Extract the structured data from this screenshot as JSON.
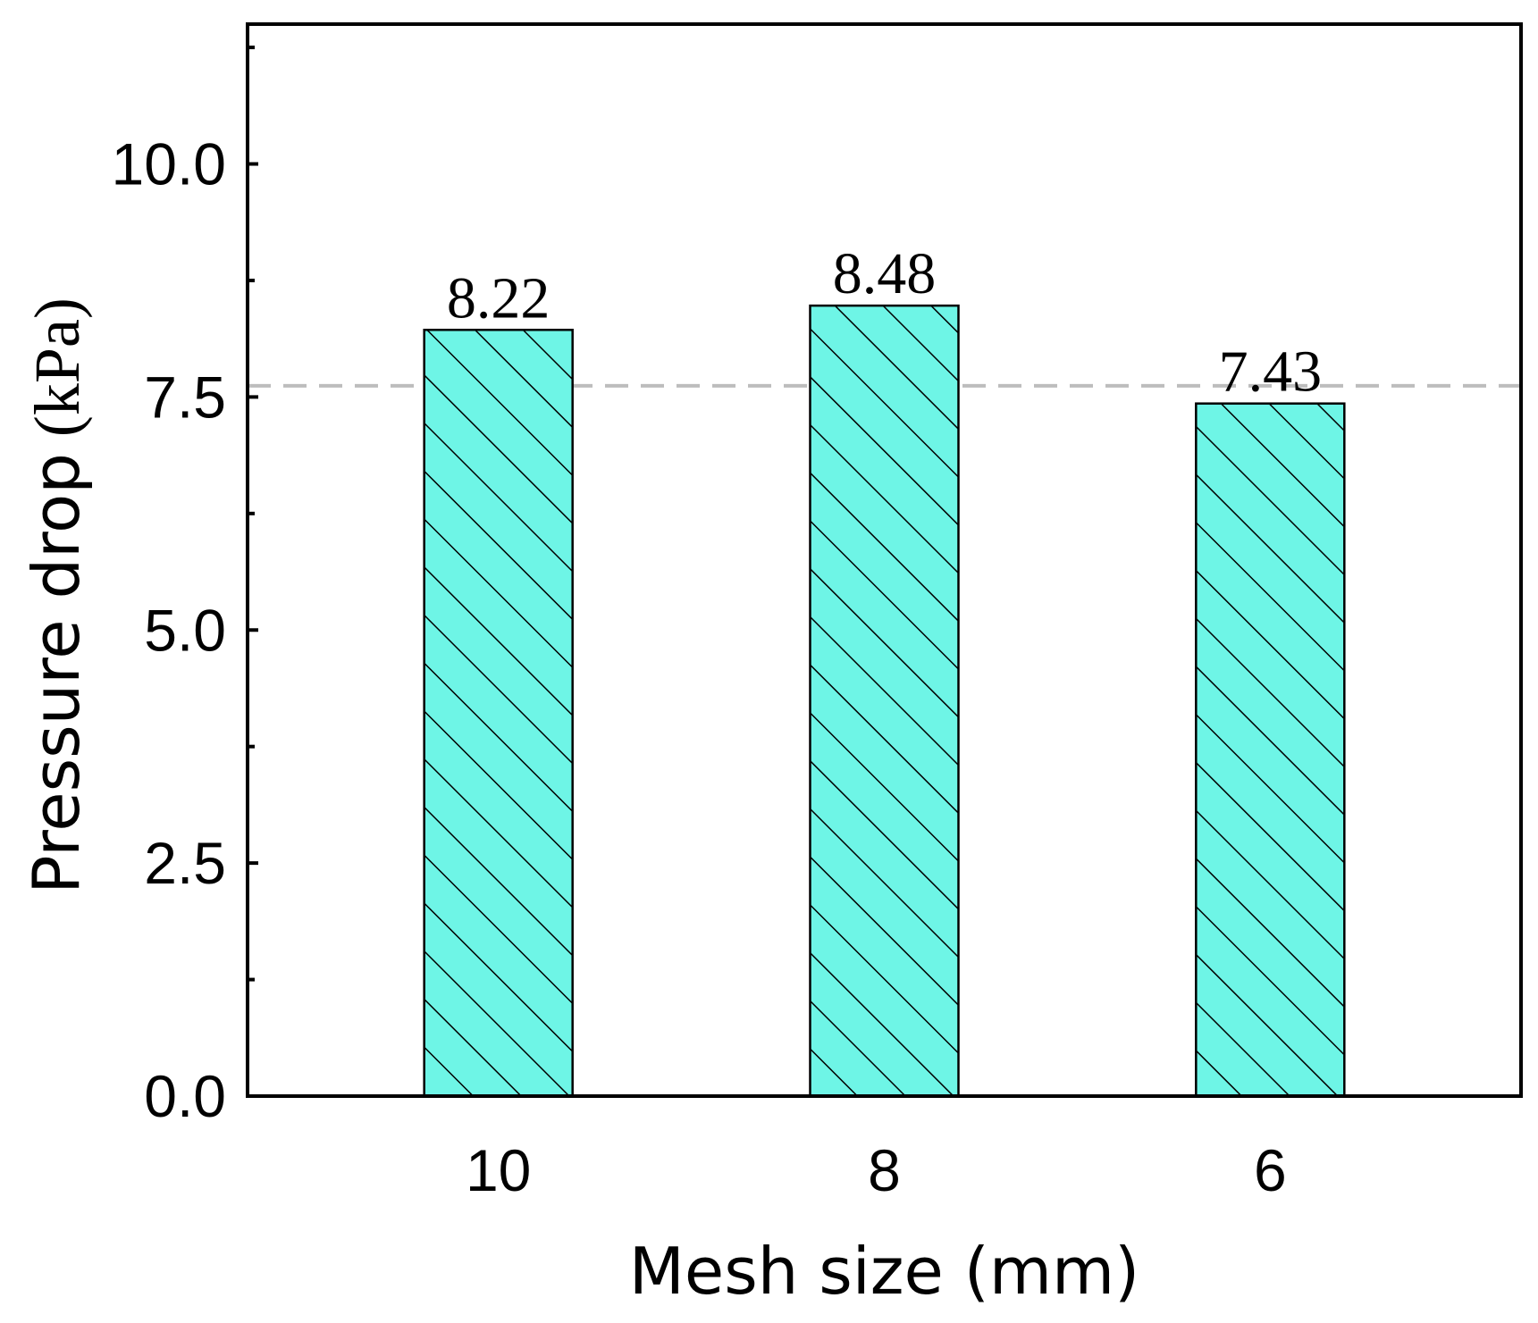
{
  "chart_data": {
    "type": "bar",
    "categories": [
      "10",
      "8",
      "6"
    ],
    "values": [
      8.22,
      8.48,
      7.43
    ],
    "data_labels": [
      "8.22",
      "8.48",
      "7.43"
    ],
    "xlabel": "Mesh size (mm)",
    "ylabel": {
      "main": "Pressure drop",
      "unit": "(kPa)"
    },
    "ylim": [
      0,
      11.5
    ],
    "yticks": [
      0,
      2.5,
      5.0,
      7.5,
      10.0
    ],
    "ytick_labels": [
      "0.0",
      "2.5",
      "5.0",
      "7.5",
      "10.0"
    ],
    "yminor_ticks": [
      1.25,
      3.75,
      6.25,
      8.75,
      11.25
    ],
    "reference_line": {
      "y": 7.62,
      "style": "dashed",
      "color": "#bdbdbd"
    },
    "bar_fill": "#6ef5e6",
    "bar_hatch": "diagonal",
    "grid": false,
    "legend": "none"
  }
}
